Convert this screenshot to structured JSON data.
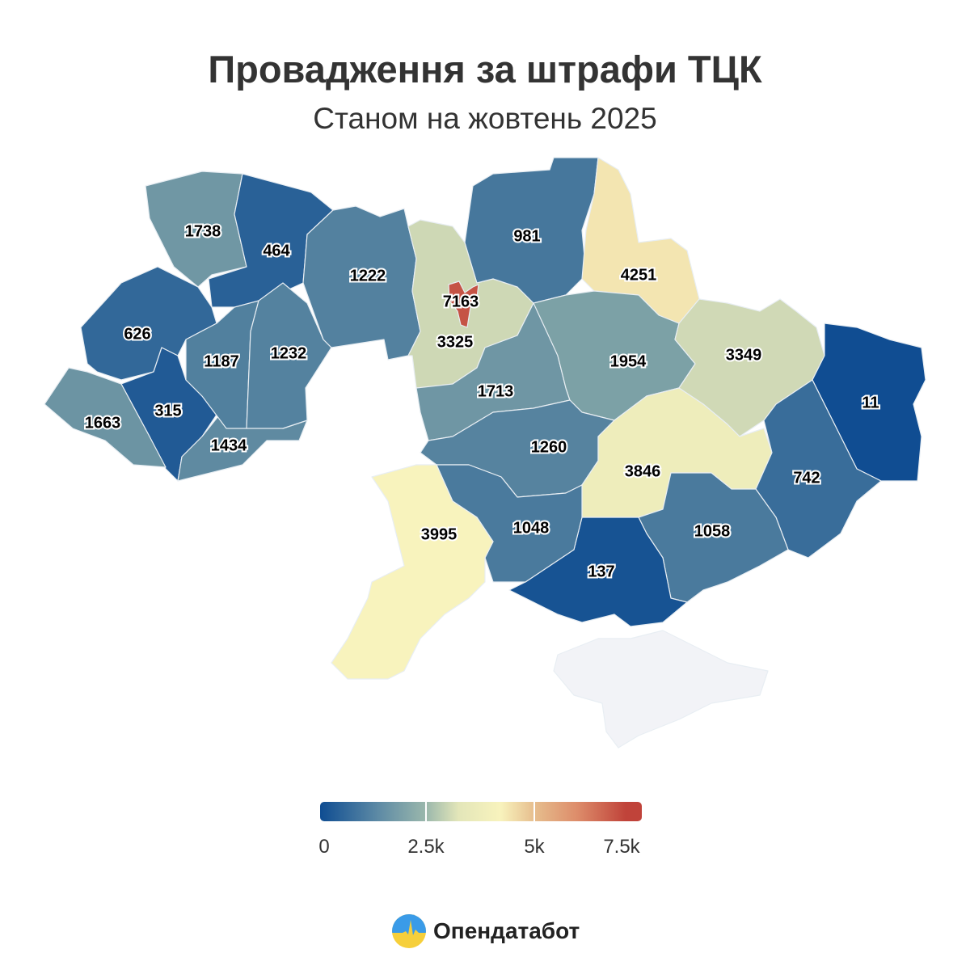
{
  "header": {
    "title": "Провадження за штрафи ТЦК",
    "subtitle": "Станом на жовтень 2025"
  },
  "chart_data": {
    "type": "choropleth",
    "title": "Провадження за штрафи ТЦК",
    "subtitle": "Станом на жовтень 2025",
    "values": [
      1738,
      464,
      626,
      315,
      1663,
      1434,
      1187,
      1232,
      1222,
      3325,
      7163,
      981,
      4251,
      1713,
      1954,
      3349,
      11,
      1260,
      3846,
      742,
      1058,
      137,
      1048,
      3995
    ],
    "no_data_color": "#f2f3f7",
    "color_scale": {
      "range": [
        0,
        7500
      ],
      "stops": [
        {
          "value": 0,
          "color": "#0f4d92"
        },
        {
          "value": 2500,
          "color": "#9bb8ac"
        },
        {
          "value": 4000,
          "color": "#f8f3bd"
        },
        {
          "value": 5000,
          "color": "#e6bc8c"
        },
        {
          "value": 7500,
          "color": "#c0433a"
        }
      ],
      "tick_labels": [
        "0",
        "2.5k",
        "5k",
        "7.5k"
      ]
    }
  },
  "footer": {
    "logo_text": "Опендатабот"
  }
}
